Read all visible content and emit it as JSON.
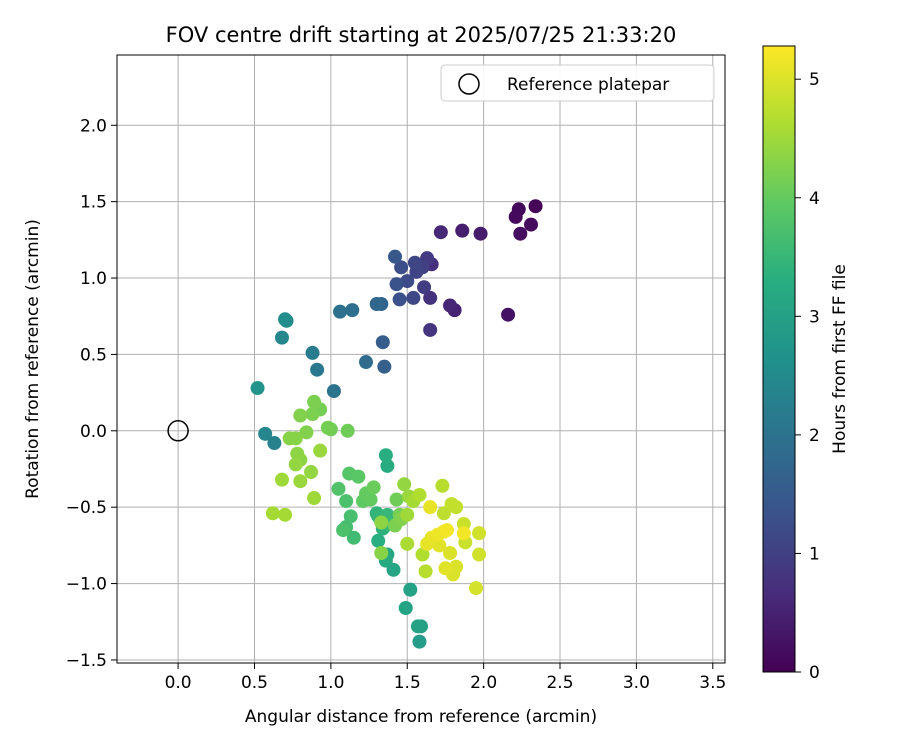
{
  "chart_data": {
    "type": "scatter",
    "title": "FOV centre drift starting at 2025/07/25 21:33:20",
    "xlabel": "Angular distance from reference (arcmin)",
    "ylabel": "Rotation from reference (arcmin)",
    "xlim": [
      -0.4,
      3.58
    ],
    "ylim": [
      -1.52,
      2.46
    ],
    "x_ticks": [
      "0.0",
      "0.5",
      "1.0",
      "1.5",
      "2.0",
      "2.5",
      "3.0",
      "3.5"
    ],
    "y_ticks": [
      "−1.5",
      "−1.0",
      "−0.5",
      "0.0",
      "0.5",
      "1.0",
      "1.5",
      "2.0"
    ],
    "grid": true,
    "legend": {
      "position": "top-right",
      "entries": [
        "Reference platepar"
      ]
    },
    "reference_point": {
      "x": 0.0,
      "y": 0.0,
      "label": "Reference platepar"
    },
    "colorbar": {
      "label": "Hours from first FF file",
      "colormap": "viridis",
      "range": [
        0,
        5.28
      ],
      "ticks": [
        "0",
        "1",
        "2",
        "3",
        "4",
        "5"
      ]
    },
    "colormap_stops": [
      "#440154",
      "#472d7b",
      "#3b528b",
      "#2c728e",
      "#21918c",
      "#28ae80",
      "#5ec962",
      "#addc30",
      "#fde725"
    ],
    "points": [
      [
        2.34,
        1.47,
        0.05
      ],
      [
        2.23,
        1.45,
        0.1
      ],
      [
        2.21,
        1.4,
        0.12
      ],
      [
        2.31,
        1.35,
        0.15
      ],
      [
        2.24,
        1.29,
        0.2
      ],
      [
        2.16,
        0.76,
        0.25
      ],
      [
        1.98,
        1.29,
        0.4
      ],
      [
        1.86,
        1.31,
        0.45
      ],
      [
        1.81,
        0.79,
        0.5
      ],
      [
        1.78,
        0.82,
        0.55
      ],
      [
        1.72,
        1.3,
        0.6
      ],
      [
        1.66,
        1.09,
        0.7
      ],
      [
        1.65,
        0.87,
        0.75
      ],
      [
        1.65,
        0.66,
        0.8
      ],
      [
        1.63,
        1.13,
        0.9
      ],
      [
        1.61,
        0.94,
        0.95
      ],
      [
        1.6,
        1.07,
        1.0
      ],
      [
        1.56,
        1.04,
        1.05
      ],
      [
        1.55,
        1.1,
        1.1
      ],
      [
        1.54,
        0.87,
        1.15
      ],
      [
        1.5,
        0.98,
        1.2
      ],
      [
        1.46,
        1.07,
        1.25
      ],
      [
        1.45,
        0.86,
        1.3
      ],
      [
        1.43,
        0.96,
        1.35
      ],
      [
        1.42,
        1.14,
        1.45
      ],
      [
        1.34,
        0.58,
        1.55
      ],
      [
        1.35,
        0.42,
        1.6
      ],
      [
        1.33,
        0.83,
        1.7
      ],
      [
        1.3,
        0.83,
        1.75
      ],
      [
        1.23,
        0.45,
        1.85
      ],
      [
        1.14,
        0.79,
        1.9
      ],
      [
        1.06,
        0.78,
        1.95
      ],
      [
        1.02,
        0.26,
        2.0
      ],
      [
        0.91,
        0.4,
        2.1
      ],
      [
        0.88,
        0.51,
        2.2
      ],
      [
        0.63,
        -0.08,
        2.3
      ],
      [
        0.57,
        -0.02,
        2.4
      ],
      [
        0.68,
        0.61,
        2.45
      ],
      [
        0.71,
        0.72,
        2.5
      ],
      [
        0.7,
        0.73,
        2.55
      ],
      [
        0.52,
        0.28,
        2.7
      ],
      [
        1.58,
        -1.38,
        2.9
      ],
      [
        1.59,
        -1.28,
        2.95
      ],
      [
        1.57,
        -1.28,
        3.0
      ],
      [
        1.52,
        -1.04,
        3.0
      ],
      [
        1.49,
        -1.16,
        3.05
      ],
      [
        1.41,
        -0.91,
        3.1
      ],
      [
        1.37,
        -0.81,
        3.15
      ],
      [
        1.36,
        -0.85,
        3.2
      ],
      [
        1.37,
        -0.23,
        3.25
      ],
      [
        1.36,
        -0.16,
        3.3
      ],
      [
        1.31,
        -0.72,
        3.3
      ],
      [
        1.34,
        -0.64,
        3.35
      ],
      [
        1.3,
        -0.54,
        3.4
      ],
      [
        1.31,
        -0.56,
        3.45
      ],
      [
        1.37,
        -0.55,
        3.5
      ],
      [
        1.36,
        -0.61,
        3.5
      ],
      [
        1.38,
        -0.61,
        3.55
      ],
      [
        1.15,
        -0.7,
        3.6
      ],
      [
        1.1,
        -0.63,
        3.65
      ],
      [
        1.13,
        -0.56,
        3.7
      ],
      [
        1.08,
        -0.65,
        3.75
      ],
      [
        1.1,
        -0.46,
        3.75
      ],
      [
        1.05,
        -0.38,
        3.8
      ],
      [
        1.12,
        -0.28,
        3.85
      ],
      [
        1.18,
        -0.3,
        3.9
      ],
      [
        1.21,
        -0.46,
        3.95
      ],
      [
        1.23,
        -0.41,
        4.0
      ],
      [
        1.26,
        -0.45,
        4.0
      ],
      [
        1.28,
        -0.37,
        4.05
      ],
      [
        1.0,
        0.01,
        4.1
      ],
      [
        1.11,
        0.0,
        4.1
      ],
      [
        0.98,
        0.02,
        4.15
      ],
      [
        0.93,
        0.14,
        4.15
      ],
      [
        0.89,
        0.19,
        4.2
      ],
      [
        0.88,
        0.11,
        4.2
      ],
      [
        0.8,
        0.1,
        4.25
      ],
      [
        0.84,
        -0.01,
        4.25
      ],
      [
        0.77,
        -0.05,
        4.3
      ],
      [
        0.73,
        -0.05,
        4.3
      ],
      [
        0.78,
        -0.15,
        4.35
      ],
      [
        0.8,
        -0.19,
        4.35
      ],
      [
        0.77,
        -0.22,
        4.4
      ],
      [
        0.87,
        -0.27,
        4.4
      ],
      [
        0.93,
        -0.13,
        4.45
      ],
      [
        0.8,
        -0.33,
        4.45
      ],
      [
        0.68,
        -0.32,
        4.5
      ],
      [
        0.89,
        -0.44,
        4.5
      ],
      [
        0.62,
        -0.54,
        4.55
      ],
      [
        0.7,
        -0.55,
        4.55
      ],
      [
        1.43,
        -0.45,
        4.1
      ],
      [
        1.45,
        -0.55,
        4.15
      ],
      [
        1.42,
        -0.62,
        4.2
      ],
      [
        1.46,
        -0.58,
        4.25
      ],
      [
        1.33,
        -0.8,
        4.3
      ],
      [
        1.33,
        -0.6,
        4.35
      ],
      [
        1.48,
        -0.35,
        4.4
      ],
      [
        1.51,
        -0.43,
        4.45
      ],
      [
        1.5,
        -0.55,
        4.5
      ],
      [
        1.54,
        -0.46,
        4.55
      ],
      [
        1.5,
        -0.74,
        4.6
      ],
      [
        1.58,
        -0.42,
        4.65
      ],
      [
        1.6,
        -0.81,
        4.65
      ],
      [
        1.62,
        -0.92,
        4.7
      ],
      [
        1.73,
        -0.36,
        4.7
      ],
      [
        1.74,
        -0.54,
        4.75
      ],
      [
        1.79,
        -0.48,
        4.8
      ],
      [
        1.82,
        -0.5,
        4.8
      ],
      [
        1.87,
        -0.61,
        4.85
      ],
      [
        1.88,
        -0.73,
        4.85
      ],
      [
        1.97,
        -0.67,
        4.9
      ],
      [
        1.97,
        -0.81,
        4.9
      ],
      [
        1.95,
        -1.03,
        4.95
      ],
      [
        1.8,
        -0.94,
        5.0
      ],
      [
        1.82,
        -0.89,
        5.0
      ],
      [
        1.78,
        -0.8,
        5.0
      ],
      [
        1.75,
        -0.9,
        5.05
      ],
      [
        1.71,
        -0.75,
        5.05
      ],
      [
        1.63,
        -0.74,
        5.1
      ],
      [
        1.66,
        -0.7,
        5.1
      ],
      [
        1.7,
        -0.68,
        5.15
      ],
      [
        1.74,
        -0.66,
        5.15
      ],
      [
        1.76,
        -0.65,
        5.2
      ],
      [
        1.87,
        -0.67,
        5.2
      ],
      [
        1.65,
        -0.5,
        5.1
      ]
    ]
  }
}
